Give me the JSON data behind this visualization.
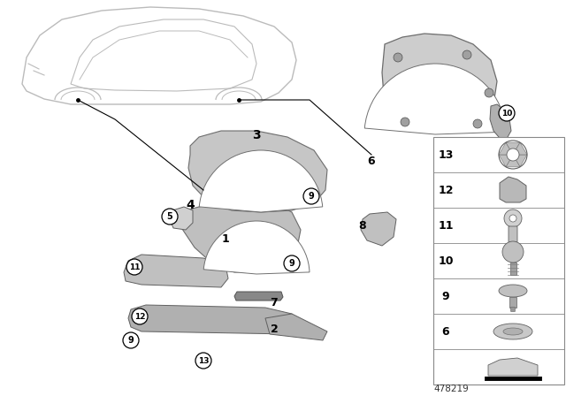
{
  "bg_color": "#ffffff",
  "diagram_number": "478219",
  "colors": {
    "part_fill": "#c8c8c8",
    "part_outline": "#707070",
    "car_outline": "#bbbbbb",
    "text": "#000000",
    "legend_border": "#888888",
    "legend_bg": "#ffffff"
  },
  "legend_items": [
    {
      "num": "13",
      "yf": 0.875
    },
    {
      "num": "12",
      "yf": 0.748
    },
    {
      "num": "11",
      "yf": 0.621
    },
    {
      "num": "10",
      "yf": 0.494
    },
    {
      "num": "9",
      "yf": 0.367
    },
    {
      "num": "6",
      "yf": 0.24
    },
    {
      "num": "",
      "yf": 0.113
    }
  ]
}
